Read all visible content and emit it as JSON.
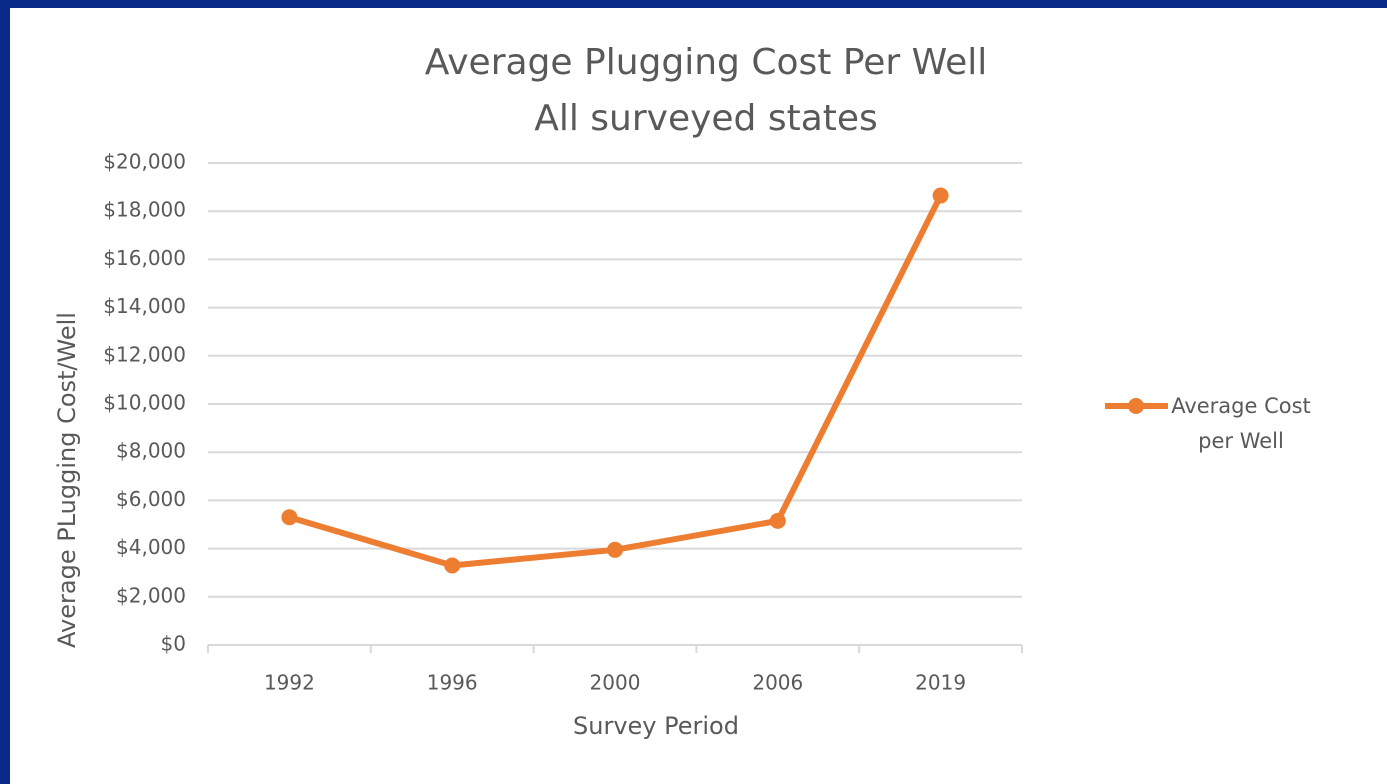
{
  "chart_data": {
    "type": "line",
    "title": "Average Plugging Cost Per Well",
    "subtitle": "All surveyed states",
    "x_label": "Survey Period",
    "y_label": "Average PLugging Cost/Well",
    "categories": [
      "1992",
      "1996",
      "2000",
      "2006",
      "2019"
    ],
    "series": [
      {
        "name": "Average Cost per Well",
        "color": "#ed7d31",
        "values": [
          5300,
          3300,
          3950,
          5150,
          18650
        ]
      }
    ],
    "ylim": [
      0,
      20000
    ],
    "yticks": [
      {
        "value": 0,
        "label": "$0"
      },
      {
        "value": 2000,
        "label": "$2,000"
      },
      {
        "value": 4000,
        "label": "$4,000"
      },
      {
        "value": 6000,
        "label": "$6,000"
      },
      {
        "value": 8000,
        "label": "$8,000"
      },
      {
        "value": 10000,
        "label": "$10,000"
      },
      {
        "value": 12000,
        "label": "$12,000"
      },
      {
        "value": 14000,
        "label": "$14,000"
      },
      {
        "value": 16000,
        "label": "$16,000"
      },
      {
        "value": 18000,
        "label": "$18,000"
      },
      {
        "value": 20000,
        "label": "$20,000"
      }
    ],
    "grid": true,
    "legend": "right"
  }
}
